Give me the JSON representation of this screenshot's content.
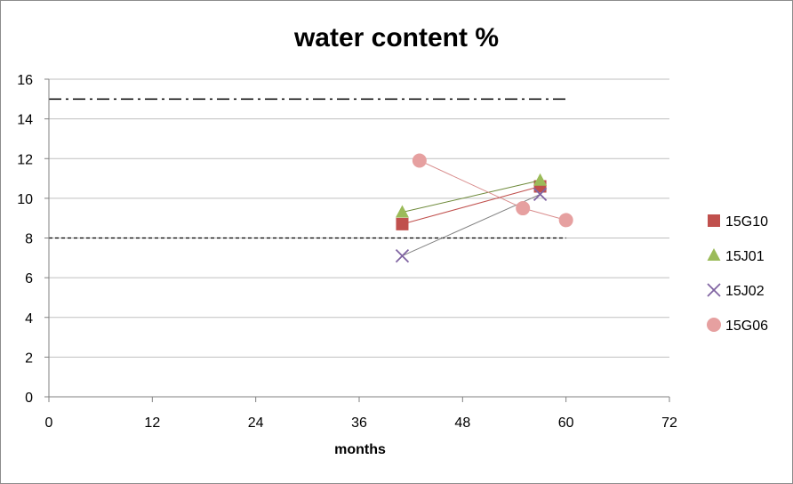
{
  "chart_data": {
    "type": "scatter",
    "title": "water content %",
    "xlabel": "months",
    "ylabel": "",
    "xlim": [
      0,
      72
    ],
    "ylim": [
      0,
      16
    ],
    "xticks": [
      0,
      12,
      24,
      36,
      48,
      60,
      72
    ],
    "yticks": [
      0,
      2,
      4,
      6,
      8,
      10,
      12,
      14,
      16
    ],
    "grid": "horizontal",
    "legend_position": "right",
    "reference_lines": [
      {
        "y": 15,
        "x_range": [
          0,
          60
        ],
        "style": "dash-dot",
        "color": "#000000"
      },
      {
        "y": 8,
        "x_range": [
          0,
          60
        ],
        "style": "dashed",
        "color": "#000000"
      }
    ],
    "series": [
      {
        "name": "15G10",
        "marker": "square",
        "color": "#c0504d",
        "line_color": "#c0504d",
        "points": [
          {
            "x": 41,
            "y": 8.7
          },
          {
            "x": 57,
            "y": 10.6
          }
        ]
      },
      {
        "name": "15J01",
        "marker": "triangle",
        "color": "#9bbb59",
        "line_color": "#6e8a3a",
        "points": [
          {
            "x": 41,
            "y": 9.3
          },
          {
            "x": 57,
            "y": 10.9
          }
        ]
      },
      {
        "name": "15J02",
        "marker": "x",
        "color": "#8064a2",
        "line_color": "#7f7f7f",
        "points": [
          {
            "x": 41,
            "y": 7.1
          },
          {
            "x": 57,
            "y": 10.2
          }
        ]
      },
      {
        "name": "15G06",
        "marker": "circle",
        "color": "#e6a0a0",
        "line_color": "#d88a8a",
        "points": [
          {
            "x": 43,
            "y": 11.9
          },
          {
            "x": 55,
            "y": 9.5
          },
          {
            "x": 60,
            "y": 8.9
          }
        ]
      }
    ]
  }
}
